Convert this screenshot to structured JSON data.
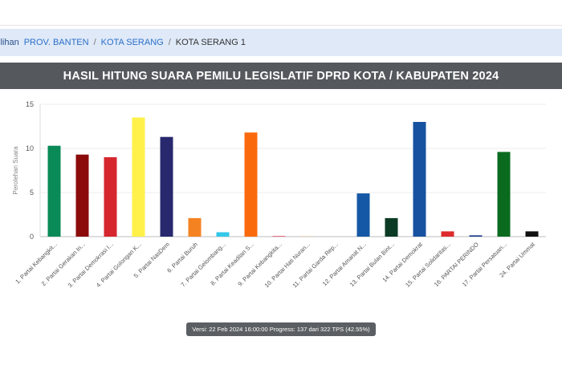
{
  "breadcrumb": {
    "first": "ilihan",
    "province": "PROV. BANTEN",
    "city": "KOTA SERANG",
    "current": "KOTA SERANG 1",
    "separator": "/"
  },
  "chart_data": {
    "type": "bar",
    "title": "HASIL HITUNG SUARA PEMILU LEGISLATIF DPRD KOTA / KABUPATEN 2024",
    "ylabel": "Perolehan Suara",
    "ylim": [
      0,
      15
    ],
    "yticks": [
      "0",
      "5",
      "10",
      "15"
    ],
    "grid": true,
    "categories": [
      "1. Partai Kebangkit...",
      "2. Partai Gerakan In...",
      "3. Partai Demokrasi I...",
      "4. Partai Golongan K...",
      "5. Partai NasDem",
      "6. Partai Buruh",
      "7. Partai Gelombang...",
      "8. Partai Keadilan S...",
      "9. Partai Kebangkita...",
      "10. Partai Hati Nuran...",
      "11. Partai Garda Rep...",
      "12. Partai Amanat N...",
      "13. Partai Bulan Bint...",
      "14. Partai Demokrat",
      "15. Partai Solidaritas...",
      "16. PARTAI PERINDO",
      "17. Partai Persatuan...",
      "24. Partai Ummat"
    ],
    "values": [
      10.3,
      9.3,
      9.0,
      13.5,
      11.3,
      2.1,
      0.5,
      11.8,
      0.05,
      0.02,
      0,
      4.9,
      2.1,
      13.0,
      0.6,
      0.15,
      9.6,
      0.6
    ],
    "colors": [
      "#0a8a56",
      "#8b0b0b",
      "#d6262e",
      "#fff04a",
      "#27286e",
      "#f58220",
      "#33c7ea",
      "#fa6a0d",
      "#d6001c",
      "#f2a93b",
      "#e0a300",
      "#1558a5",
      "#0b3b24",
      "#1752a0",
      "#dd2b2b",
      "#1f3d8f",
      "#0a6b1f",
      "#111111"
    ]
  },
  "footer": {
    "version": "Versi: 22 Feb 2024 16:00:00 Progress: 137 dari 322 TPS (42.55%)"
  }
}
